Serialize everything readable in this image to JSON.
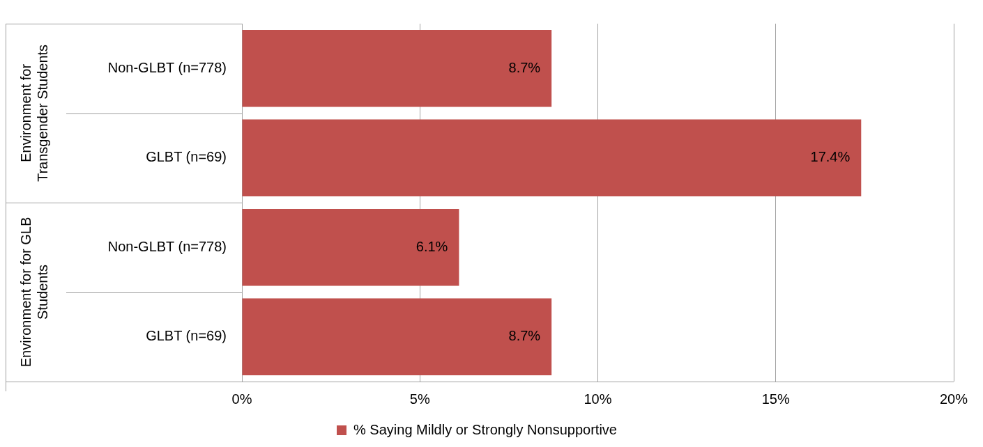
{
  "chart_data": {
    "type": "bar",
    "orientation": "horizontal",
    "categories": [
      "Non-GLBT (n=778)",
      "GLBT (n=69)",
      "Non-GLBT (n=778)",
      "GLBT (n=69)"
    ],
    "series": [
      {
        "name": "% Saying Mildly or Strongly Nonsupportive",
        "color": "#c0504d",
        "values": [
          8.7,
          17.4,
          6.1,
          8.7
        ],
        "value_labels": [
          "8.7%",
          "17.4%",
          "6.1%",
          "8.7%"
        ]
      }
    ],
    "xlim": [
      0,
      20
    ],
    "xticks": [
      {
        "value": 0,
        "label": "0%"
      },
      {
        "value": 5,
        "label": "5%"
      },
      {
        "value": 10,
        "label": "10%"
      },
      {
        "value": 15,
        "label": "15%"
      },
      {
        "value": 20,
        "label": "20%"
      }
    ],
    "annotations": [
      "Environment for Transgender Students",
      "Environment for for GLB Students"
    ],
    "grid": "x",
    "legend": "bottom"
  }
}
